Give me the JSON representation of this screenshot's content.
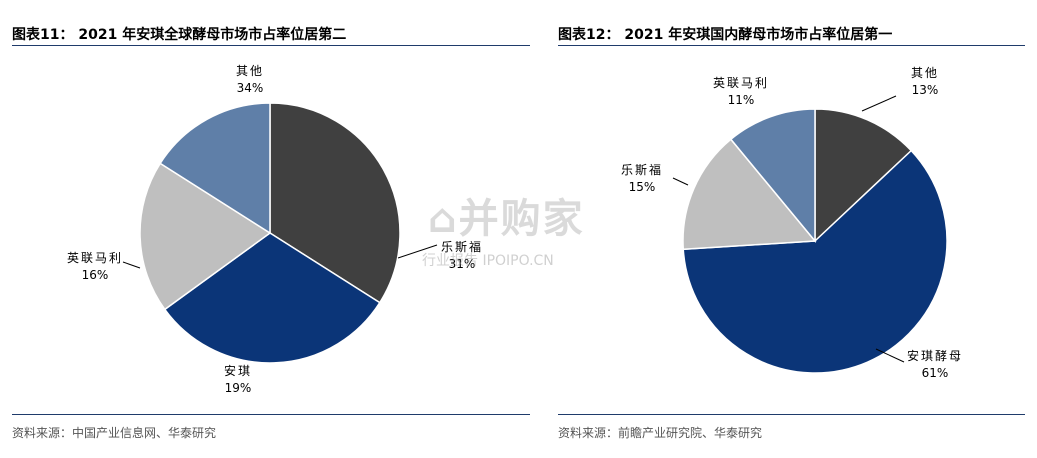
{
  "watermark": {
    "main": "⌂并购家",
    "sub": "行业报告 IPOIPO.CN"
  },
  "chart_data": [
    {
      "type": "pie",
      "title": "图表11： 2021 年安琪全球酵母市场市占率位居第二",
      "source": "资料来源：中国产业信息网、华泰研究",
      "slices": [
        {
          "name": "其他",
          "value": 34,
          "label": "34%",
          "color": "#404040"
        },
        {
          "name": "乐斯福",
          "value": 31,
          "label": "31%",
          "color": "#0b3578"
        },
        {
          "name": "安琪",
          "value": 19,
          "label": "19%",
          "color": "#bfbfbf"
        },
        {
          "name": "英联马利",
          "value": 16,
          "label": "16%",
          "color": "#5f7fa8"
        }
      ]
    },
    {
      "type": "pie",
      "title": "图表12： 2021 年安琪国内酵母市场市占率位居第一",
      "source": "资料来源：前瞻产业研究院、华泰研究",
      "slices": [
        {
          "name": "其他",
          "value": 13,
          "label": "13%",
          "color": "#404040"
        },
        {
          "name": "安琪酵母",
          "value": 61,
          "label": "61%",
          "color": "#0b3578"
        },
        {
          "name": "乐斯福",
          "value": 15,
          "label": "15%",
          "color": "#bfbfbf"
        },
        {
          "name": "英联马利",
          "value": 11,
          "label": "11%",
          "color": "#5f7fa8"
        }
      ]
    }
  ]
}
